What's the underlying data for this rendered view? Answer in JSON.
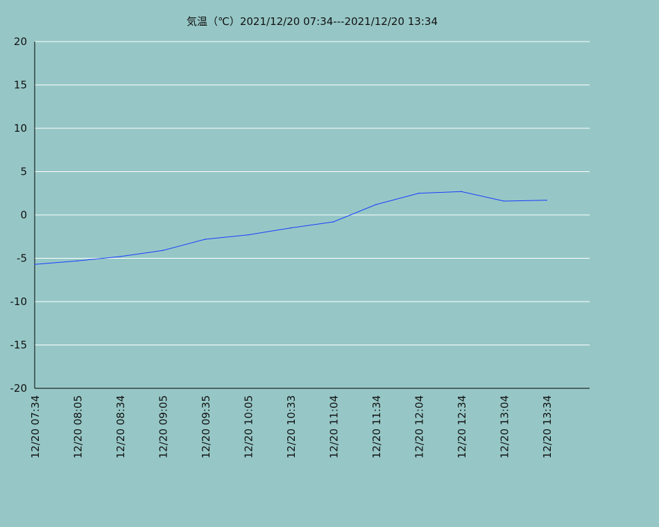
{
  "chart_data": {
    "type": "line",
    "title": "気温（℃）2021/12/20 07:34---2021/12/20 13:34",
    "xlabel": "",
    "ylabel": "",
    "ylim": [
      -20,
      20
    ],
    "yticks": [
      20,
      15,
      10,
      5,
      0,
      -5,
      -10,
      -15,
      -20
    ],
    "grid": true,
    "categories": [
      "12/20 07:34",
      "12/20 08:05",
      "12/20 08:34",
      "12/20 09:05",
      "12/20 09:35",
      "12/20 10:05",
      "12/20 10:33",
      "12/20 11:04",
      "12/20 11:34",
      "12/20 12:04",
      "12/20 12:34",
      "12/20 13:04",
      "12/20 13:34"
    ],
    "series": [
      {
        "values": [
          -5.7,
          -5.3,
          -4.8,
          -4.1,
          -2.8,
          -2.3,
          -1.5,
          -0.8,
          1.2,
          2.5,
          2.7,
          1.6,
          1.7
        ]
      }
    ],
    "colors": {
      "background": "#96c7c6",
      "line": "#1a3cff",
      "grid": "#ffffff",
      "axis": "#000000"
    }
  }
}
